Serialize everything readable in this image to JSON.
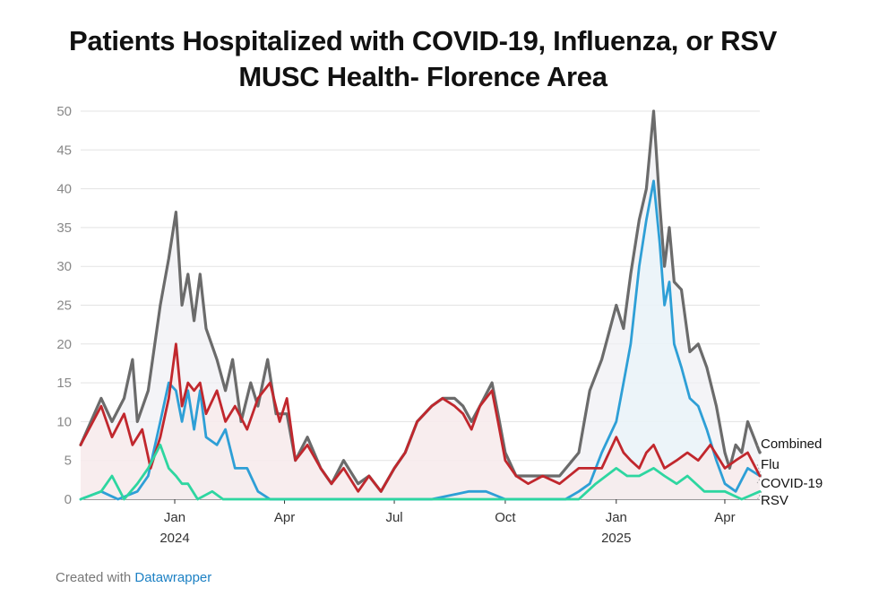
{
  "chart_data": {
    "type": "line",
    "title": "Patients Hospitalized with COVID-19, Influenza, or RSV",
    "subtitle": "MUSC Health- Florence Area",
    "ylim": [
      0,
      50
    ],
    "yticks": [
      "0",
      "5",
      "10",
      "15",
      "20",
      "25",
      "30",
      "35",
      "40",
      "45",
      "50"
    ],
    "xlim": [
      "2023-10-15",
      "2025-04-30"
    ],
    "xticks": [
      {
        "date": "2024-01-01",
        "label": "Jan",
        "sublabel": "2024"
      },
      {
        "date": "2024-04-01",
        "label": "Apr",
        "sublabel": ""
      },
      {
        "date": "2024-07-01",
        "label": "Jul",
        "sublabel": ""
      },
      {
        "date": "2024-10-01",
        "label": "Oct",
        "sublabel": ""
      },
      {
        "date": "2025-01-01",
        "label": "Jan",
        "sublabel": "2025"
      },
      {
        "date": "2025-04-01",
        "label": "Apr",
        "sublabel": ""
      }
    ],
    "grid": true,
    "legend": "direct labels at right end of lines",
    "series": [
      {
        "name": "Combined",
        "color": "#6b6b6b",
        "points": [
          [
            "2023-10-15",
            7
          ],
          [
            "2023-11-01",
            13
          ],
          [
            "2023-11-10",
            10
          ],
          [
            "2023-11-20",
            13
          ],
          [
            "2023-11-27",
            18
          ],
          [
            "2023-12-01",
            10
          ],
          [
            "2023-12-10",
            14
          ],
          [
            "2023-12-20",
            25
          ],
          [
            "2023-12-27",
            31
          ],
          [
            "2024-01-02",
            37
          ],
          [
            "2024-01-07",
            25
          ],
          [
            "2024-01-12",
            29
          ],
          [
            "2024-01-17",
            23
          ],
          [
            "2024-01-22",
            29
          ],
          [
            "2024-01-27",
            22
          ],
          [
            "2024-02-05",
            18
          ],
          [
            "2024-02-12",
            14
          ],
          [
            "2024-02-18",
            18
          ],
          [
            "2024-02-25",
            10
          ],
          [
            "2024-03-04",
            15
          ],
          [
            "2024-03-10",
            12
          ],
          [
            "2024-03-18",
            18
          ],
          [
            "2024-03-25",
            11
          ],
          [
            "2024-04-03",
            11
          ],
          [
            "2024-04-10",
            5
          ],
          [
            "2024-04-20",
            8
          ],
          [
            "2024-05-01",
            4
          ],
          [
            "2024-05-10",
            2
          ],
          [
            "2024-05-20",
            5
          ],
          [
            "2024-06-01",
            2
          ],
          [
            "2024-06-10",
            3
          ],
          [
            "2024-06-20",
            1
          ],
          [
            "2024-07-01",
            4
          ],
          [
            "2024-07-10",
            6
          ],
          [
            "2024-07-20",
            10
          ],
          [
            "2024-08-01",
            12
          ],
          [
            "2024-08-10",
            13
          ],
          [
            "2024-08-20",
            13
          ],
          [
            "2024-08-27",
            12
          ],
          [
            "2024-09-03",
            10
          ],
          [
            "2024-09-10",
            12
          ],
          [
            "2024-09-20",
            15
          ],
          [
            "2024-09-25",
            11
          ],
          [
            "2024-10-01",
            6
          ],
          [
            "2024-10-10",
            3
          ],
          [
            "2024-10-20",
            3
          ],
          [
            "2024-11-01",
            3
          ],
          [
            "2024-11-15",
            3
          ],
          [
            "2024-12-01",
            6
          ],
          [
            "2024-12-10",
            14
          ],
          [
            "2024-12-20",
            18
          ],
          [
            "2025-01-01",
            25
          ],
          [
            "2025-01-07",
            22
          ],
          [
            "2025-01-13",
            29
          ],
          [
            "2025-01-20",
            36
          ],
          [
            "2025-01-26",
            40
          ],
          [
            "2025-02-01",
            50
          ],
          [
            "2025-02-06",
            38
          ],
          [
            "2025-02-10",
            30
          ],
          [
            "2025-02-14",
            35
          ],
          [
            "2025-02-18",
            28
          ],
          [
            "2025-02-24",
            27
          ],
          [
            "2025-03-03",
            19
          ],
          [
            "2025-03-10",
            20
          ],
          [
            "2025-03-17",
            17
          ],
          [
            "2025-03-25",
            12
          ],
          [
            "2025-04-01",
            6
          ],
          [
            "2025-04-05",
            4
          ],
          [
            "2025-04-10",
            7
          ],
          [
            "2025-04-15",
            6
          ],
          [
            "2025-04-20",
            10
          ],
          [
            "2025-04-25",
            8
          ],
          [
            "2025-04-30",
            6
          ]
        ]
      },
      {
        "name": "Flu",
        "color": "#2e9fd6",
        "points": [
          [
            "2023-10-15",
            0
          ],
          [
            "2023-11-01",
            1
          ],
          [
            "2023-11-15",
            0
          ],
          [
            "2023-12-01",
            1
          ],
          [
            "2023-12-10",
            3
          ],
          [
            "2023-12-20",
            10
          ],
          [
            "2023-12-27",
            15
          ],
          [
            "2024-01-02",
            14
          ],
          [
            "2024-01-07",
            10
          ],
          [
            "2024-01-12",
            14
          ],
          [
            "2024-01-17",
            9
          ],
          [
            "2024-01-22",
            14
          ],
          [
            "2024-01-27",
            8
          ],
          [
            "2024-02-05",
            7
          ],
          [
            "2024-02-12",
            9
          ],
          [
            "2024-02-20",
            4
          ],
          [
            "2024-03-01",
            4
          ],
          [
            "2024-03-10",
            1
          ],
          [
            "2024-03-20",
            0
          ],
          [
            "2024-04-01",
            0
          ],
          [
            "2024-05-01",
            0
          ],
          [
            "2024-06-01",
            0
          ],
          [
            "2024-07-01",
            0
          ],
          [
            "2024-08-01",
            0
          ],
          [
            "2024-09-01",
            1
          ],
          [
            "2024-09-15",
            1
          ],
          [
            "2024-10-01",
            0
          ],
          [
            "2024-11-01",
            0
          ],
          [
            "2024-11-20",
            0
          ],
          [
            "2024-12-01",
            1
          ],
          [
            "2024-12-10",
            2
          ],
          [
            "2024-12-20",
            6
          ],
          [
            "2025-01-01",
            10
          ],
          [
            "2025-01-07",
            15
          ],
          [
            "2025-01-13",
            20
          ],
          [
            "2025-01-20",
            30
          ],
          [
            "2025-01-26",
            36
          ],
          [
            "2025-02-01",
            41
          ],
          [
            "2025-02-06",
            33
          ],
          [
            "2025-02-10",
            25
          ],
          [
            "2025-02-14",
            28
          ],
          [
            "2025-02-18",
            20
          ],
          [
            "2025-02-24",
            17
          ],
          [
            "2025-03-03",
            13
          ],
          [
            "2025-03-10",
            12
          ],
          [
            "2025-03-17",
            9
          ],
          [
            "2025-03-25",
            5
          ],
          [
            "2025-04-01",
            2
          ],
          [
            "2025-04-10",
            1
          ],
          [
            "2025-04-20",
            4
          ],
          [
            "2025-04-30",
            3
          ]
        ]
      },
      {
        "name": "COVID-19",
        "color": "#c1272d",
        "points": [
          [
            "2023-10-15",
            7
          ],
          [
            "2023-11-01",
            12
          ],
          [
            "2023-11-10",
            8
          ],
          [
            "2023-11-20",
            11
          ],
          [
            "2023-11-27",
            7
          ],
          [
            "2023-12-05",
            9
          ],
          [
            "2023-12-12",
            4
          ],
          [
            "2023-12-20",
            8
          ],
          [
            "2023-12-27",
            13
          ],
          [
            "2024-01-02",
            20
          ],
          [
            "2024-01-07",
            12
          ],
          [
            "2024-01-12",
            15
          ],
          [
            "2024-01-17",
            14
          ],
          [
            "2024-01-22",
            15
          ],
          [
            "2024-01-27",
            11
          ],
          [
            "2024-02-05",
            14
          ],
          [
            "2024-02-12",
            10
          ],
          [
            "2024-02-20",
            12
          ],
          [
            "2024-03-01",
            9
          ],
          [
            "2024-03-10",
            13
          ],
          [
            "2024-03-20",
            15
          ],
          [
            "2024-03-28",
            10
          ],
          [
            "2024-04-03",
            13
          ],
          [
            "2024-04-10",
            5
          ],
          [
            "2024-04-20",
            7
          ],
          [
            "2024-05-01",
            4
          ],
          [
            "2024-05-10",
            2
          ],
          [
            "2024-05-20",
            4
          ],
          [
            "2024-06-01",
            1
          ],
          [
            "2024-06-10",
            3
          ],
          [
            "2024-06-20",
            1
          ],
          [
            "2024-07-01",
            4
          ],
          [
            "2024-07-10",
            6
          ],
          [
            "2024-07-20",
            10
          ],
          [
            "2024-08-01",
            12
          ],
          [
            "2024-08-10",
            13
          ],
          [
            "2024-08-20",
            12
          ],
          [
            "2024-08-27",
            11
          ],
          [
            "2024-09-03",
            9
          ],
          [
            "2024-09-10",
            12
          ],
          [
            "2024-09-20",
            14
          ],
          [
            "2024-09-25",
            10
          ],
          [
            "2024-10-01",
            5
          ],
          [
            "2024-10-10",
            3
          ],
          [
            "2024-10-20",
            2
          ],
          [
            "2024-11-01",
            3
          ],
          [
            "2024-11-15",
            2
          ],
          [
            "2024-12-01",
            4
          ],
          [
            "2024-12-10",
            4
          ],
          [
            "2024-12-20",
            4
          ],
          [
            "2025-01-01",
            8
          ],
          [
            "2025-01-07",
            6
          ],
          [
            "2025-01-13",
            5
          ],
          [
            "2025-01-20",
            4
          ],
          [
            "2025-01-26",
            6
          ],
          [
            "2025-02-01",
            7
          ],
          [
            "2025-02-10",
            4
          ],
          [
            "2025-02-20",
            5
          ],
          [
            "2025-03-01",
            6
          ],
          [
            "2025-03-10",
            5
          ],
          [
            "2025-03-20",
            7
          ],
          [
            "2025-04-01",
            4
          ],
          [
            "2025-04-10",
            5
          ],
          [
            "2025-04-20",
            6
          ],
          [
            "2025-04-30",
            3
          ]
        ]
      },
      {
        "name": "RSV",
        "color": "#2ed6a0",
        "points": [
          [
            "2023-10-15",
            0
          ],
          [
            "2023-11-01",
            1
          ],
          [
            "2023-11-10",
            3
          ],
          [
            "2023-11-20",
            0
          ],
          [
            "2023-12-01",
            2
          ],
          [
            "2023-12-10",
            4
          ],
          [
            "2023-12-20",
            7
          ],
          [
            "2023-12-27",
            4
          ],
          [
            "2024-01-02",
            3
          ],
          [
            "2024-01-07",
            2
          ],
          [
            "2024-01-12",
            2
          ],
          [
            "2024-01-20",
            0
          ],
          [
            "2024-02-01",
            1
          ],
          [
            "2024-02-10",
            0
          ],
          [
            "2024-03-01",
            0
          ],
          [
            "2024-04-01",
            0
          ],
          [
            "2024-05-01",
            0
          ],
          [
            "2024-06-01",
            0
          ],
          [
            "2024-07-01",
            0
          ],
          [
            "2024-08-01",
            0
          ],
          [
            "2024-09-01",
            0
          ],
          [
            "2024-10-01",
            0
          ],
          [
            "2024-11-01",
            0
          ],
          [
            "2024-12-01",
            0
          ],
          [
            "2024-12-15",
            2
          ],
          [
            "2025-01-01",
            4
          ],
          [
            "2025-01-10",
            3
          ],
          [
            "2025-01-20",
            3
          ],
          [
            "2025-02-01",
            4
          ],
          [
            "2025-02-10",
            3
          ],
          [
            "2025-02-20",
            2
          ],
          [
            "2025-03-01",
            3
          ],
          [
            "2025-03-15",
            1
          ],
          [
            "2025-04-01",
            1
          ],
          [
            "2025-04-15",
            0
          ],
          [
            "2025-04-30",
            1
          ]
        ]
      }
    ]
  },
  "footer": {
    "prefix": "Created with ",
    "link": "Datawrapper"
  }
}
